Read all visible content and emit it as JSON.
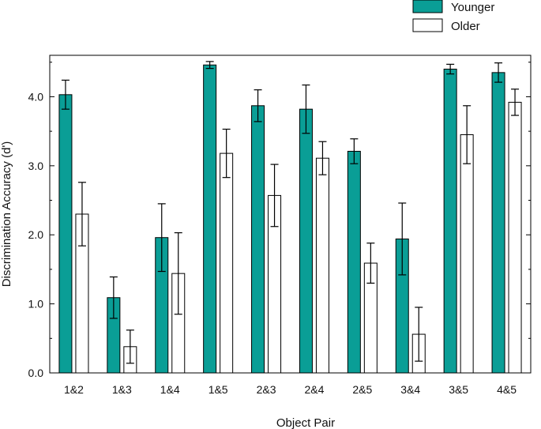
{
  "chart_data": {
    "type": "bar",
    "title": "",
    "xlabel": "Object Pair",
    "ylabel": "Discrimination Accuracy (d')",
    "ylim": [
      0,
      4.6
    ],
    "yticks": [
      0,
      1,
      2,
      3,
      4
    ],
    "ytick_labels": [
      "0.0",
      "1.0",
      "2.0",
      "3.0",
      "4.0"
    ],
    "legend_position": "top-right-outside",
    "categories": [
      "1&2",
      "1&3",
      "1&4",
      "1&5",
      "2&3",
      "2&4",
      "2&5",
      "3&4",
      "3&5",
      "4&5"
    ],
    "series": [
      {
        "name": "Younger",
        "color": "#0a9e96",
        "values": [
          4.03,
          1.09,
          1.96,
          4.46,
          3.87,
          3.82,
          3.21,
          1.94,
          4.4,
          4.35
        ],
        "error": [
          0.21,
          0.3,
          0.49,
          0.05,
          0.23,
          0.35,
          0.18,
          0.52,
          0.07,
          0.14
        ]
      },
      {
        "name": "Older",
        "color": "#ffffff",
        "values": [
          2.3,
          0.38,
          1.44,
          3.18,
          2.57,
          3.11,
          1.59,
          0.56,
          3.45,
          3.92
        ],
        "error": [
          0.46,
          0.24,
          0.59,
          0.35,
          0.45,
          0.24,
          0.29,
          0.39,
          0.42,
          0.19
        ]
      }
    ]
  }
}
